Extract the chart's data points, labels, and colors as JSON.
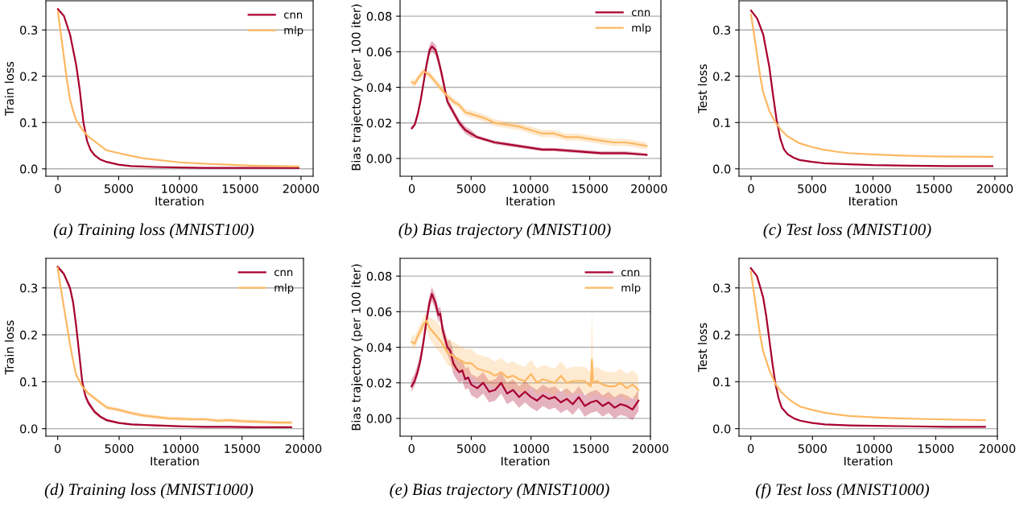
{
  "chart_data": [
    {
      "type": "line",
      "title": "(a) Training loss (MNIST100)",
      "xlabel": "Iteration",
      "ylabel": "Train loss",
      "xlim": [
        -990,
        21000
      ],
      "xticks": [
        0,
        5000,
        10000,
        15000,
        20000
      ],
      "ylim": [
        -0.016,
        0.363
      ],
      "yticks": [
        {
          "value": 0,
          "label": "0.0"
        },
        0.1,
        0.2,
        0.3
      ],
      "grid": "y",
      "legend": "top right",
      "line_style": "solid",
      "series": [
        {
          "name": "cnn",
          "color": "#a8002f",
          "x": [
            0,
            500,
            1000,
            1500,
            1800,
            2100,
            2400,
            2700,
            3000,
            3500,
            4000,
            5000,
            6000,
            7000,
            8000,
            10000,
            12000,
            15000,
            19800
          ],
          "values": [
            0.345,
            0.33,
            0.29,
            0.225,
            0.17,
            0.1,
            0.06,
            0.04,
            0.03,
            0.02,
            0.015,
            0.009,
            0.006,
            0.005,
            0.004,
            0.003,
            0.002,
            0.002,
            0.002
          ]
        },
        {
          "name": "mlp",
          "color": "#fdb863",
          "x": [
            0,
            250,
            500,
            750,
            1000,
            1250,
            1500,
            2000,
            2500,
            3000,
            3500,
            4000,
            5000,
            6000,
            7000,
            8000,
            9000,
            10000,
            12000,
            14000,
            16000,
            18000,
            19800
          ],
          "values": [
            0.34,
            0.29,
            0.24,
            0.19,
            0.15,
            0.125,
            0.105,
            0.085,
            0.07,
            0.06,
            0.05,
            0.04,
            0.034,
            0.028,
            0.023,
            0.02,
            0.017,
            0.014,
            0.011,
            0.009,
            0.007,
            0.006,
            0.005
          ]
        }
      ]
    },
    {
      "type": "line",
      "title": "(b) Bias trajectory (MNIST100)",
      "xlabel": "Iteration",
      "ylabel": "Bias trajectory (per 100 iter)",
      "xlim": [
        -990,
        21000
      ],
      "xticks": [
        0,
        5000,
        10000,
        15000,
        20000
      ],
      "ylim": [
        -0.01,
        0.09
      ],
      "yticks": [
        {
          "value": 0,
          "label": "0.00"
        },
        {
          "value": 0.02,
          "label": "0.02"
        },
        {
          "value": 0.04,
          "label": "0.04"
        },
        {
          "value": 0.06,
          "label": "0.06"
        },
        {
          "value": 0.08,
          "label": "0.08"
        }
      ],
      "grid": "y",
      "legend": "top right",
      "line_style": "solid",
      "series": [
        {
          "name": "cnn",
          "color": "#a8002f",
          "x": [
            0,
            250,
            500,
            750,
            1000,
            1250,
            1500,
            1700,
            2000,
            2250,
            2500,
            2750,
            3000,
            3500,
            4000,
            4500,
            5000,
            5500,
            6000,
            7000,
            8000,
            9000,
            10000,
            11000,
            12000,
            14000,
            16000,
            18000,
            19800
          ],
          "values": [
            0.017,
            0.019,
            0.025,
            0.033,
            0.043,
            0.053,
            0.061,
            0.063,
            0.061,
            0.055,
            0.048,
            0.04,
            0.032,
            0.026,
            0.02,
            0.016,
            0.014,
            0.012,
            0.011,
            0.009,
            0.008,
            0.007,
            0.006,
            0.005,
            0.005,
            0.004,
            0.003,
            0.003,
            0.002
          ],
          "lower": [
            0.016,
            0.018,
            0.023,
            0.031,
            0.041,
            0.05,
            0.058,
            0.06,
            0.058,
            0.052,
            0.045,
            0.037,
            0.03,
            0.024,
            0.018,
            0.014,
            0.012,
            0.011,
            0.01,
            0.008,
            0.007,
            0.006,
            0.005,
            0.004,
            0.004,
            0.003,
            0.002,
            0.002,
            0.002
          ],
          "upper": [
            0.018,
            0.02,
            0.027,
            0.035,
            0.045,
            0.056,
            0.064,
            0.066,
            0.064,
            0.058,
            0.051,
            0.043,
            0.034,
            0.028,
            0.022,
            0.018,
            0.016,
            0.013,
            0.012,
            0.01,
            0.009,
            0.008,
            0.007,
            0.006,
            0.006,
            0.005,
            0.004,
            0.004,
            0.003
          ]
        },
        {
          "name": "mlp",
          "color": "#fdb863",
          "x": [
            0,
            250,
            500,
            1000,
            1500,
            2000,
            2500,
            3000,
            3500,
            4000,
            4500,
            5000,
            6000,
            7000,
            8000,
            9000,
            10000,
            11000,
            12000,
            13000,
            14000,
            15000,
            16000,
            17000,
            18000,
            19000,
            19800
          ],
          "values": [
            0.043,
            0.042,
            0.045,
            0.049,
            0.047,
            0.043,
            0.039,
            0.035,
            0.032,
            0.03,
            0.026,
            0.025,
            0.023,
            0.02,
            0.019,
            0.018,
            0.016,
            0.014,
            0.014,
            0.012,
            0.012,
            0.011,
            0.01,
            0.009,
            0.009,
            0.008,
            0.007
          ],
          "lower": [
            0.041,
            0.04,
            0.043,
            0.047,
            0.045,
            0.041,
            0.037,
            0.033,
            0.03,
            0.028,
            0.024,
            0.023,
            0.021,
            0.018,
            0.017,
            0.016,
            0.014,
            0.012,
            0.012,
            0.01,
            0.01,
            0.009,
            0.008,
            0.007,
            0.007,
            0.006,
            0.005
          ],
          "upper": [
            0.045,
            0.044,
            0.047,
            0.051,
            0.049,
            0.045,
            0.041,
            0.037,
            0.034,
            0.032,
            0.028,
            0.027,
            0.025,
            0.022,
            0.021,
            0.02,
            0.018,
            0.016,
            0.016,
            0.014,
            0.014,
            0.013,
            0.012,
            0.011,
            0.011,
            0.01,
            0.009
          ]
        }
      ]
    },
    {
      "type": "line",
      "title": "(c) Test loss (MNIST100)",
      "xlabel": "Iteration",
      "ylabel": "Test loss",
      "xlim": [
        -990,
        21000
      ],
      "xticks": [
        0,
        5000,
        10000,
        15000,
        20000
      ],
      "ylim": [
        -0.016,
        0.363
      ],
      "yticks": [
        {
          "value": 0,
          "label": "0.0"
        },
        0.1,
        0.2,
        0.3
      ],
      "grid": "y",
      "line_style": "solid",
      "series": [
        {
          "color": "#a8002f",
          "x": [
            0,
            500,
            1000,
            1500,
            1800,
            2100,
            2400,
            2700,
            3000,
            3500,
            4000,
            5000,
            6000,
            8000,
            10000,
            13000,
            16000,
            19800
          ],
          "values": [
            0.342,
            0.325,
            0.29,
            0.22,
            0.16,
            0.105,
            0.065,
            0.042,
            0.032,
            0.024,
            0.019,
            0.015,
            0.012,
            0.01,
            0.008,
            0.007,
            0.006,
            0.006
          ]
        },
        {
          "color": "#fdb863",
          "x": [
            0,
            250,
            500,
            750,
            1000,
            1500,
            2000,
            2500,
            3000,
            4000,
            5000,
            6000,
            7000,
            8000,
            10000,
            12000,
            15000,
            19800
          ],
          "values": [
            0.333,
            0.29,
            0.245,
            0.2,
            0.165,
            0.125,
            0.1,
            0.083,
            0.07,
            0.055,
            0.047,
            0.041,
            0.037,
            0.034,
            0.031,
            0.029,
            0.027,
            0.026
          ]
        }
      ]
    },
    {
      "type": "line",
      "title": "(d) Training loss (MNIST1000)",
      "xlabel": "Iteration",
      "ylabel": "Train loss",
      "xlim": [
        -960,
        20000
      ],
      "xticks": [
        0,
        5000,
        10000,
        15000,
        20000
      ],
      "ylim": [
        -0.016,
        0.363
      ],
      "yticks": [
        {
          "value": 0,
          "label": "0.0"
        },
        0.1,
        0.2,
        0.3
      ],
      "grid": "y",
      "legend": "top right",
      "line_style": "solid",
      "series": [
        {
          "name": "cnn",
          "color": "#a8002f",
          "x": [
            0,
            500,
            1000,
            1250,
            1500,
            1750,
            2000,
            2250,
            2500,
            3000,
            3500,
            4000,
            5000,
            6000,
            7000,
            8000,
            9000,
            10000,
            12000,
            14000,
            16000,
            18000,
            19000
          ],
          "values": [
            0.345,
            0.33,
            0.3,
            0.27,
            0.22,
            0.16,
            0.1,
            0.07,
            0.055,
            0.036,
            0.025,
            0.018,
            0.012,
            0.009,
            0.008,
            0.007,
            0.006,
            0.005,
            0.004,
            0.004,
            0.003,
            0.003,
            0.003
          ],
          "lower": [
            0.342,
            0.326,
            0.293,
            0.262,
            0.212,
            0.152,
            0.093,
            0.064,
            0.049,
            0.032,
            0.022,
            0.015,
            0.01,
            0.007,
            0.006,
            0.005,
            0.004,
            0.003,
            0.002,
            0.002,
            0.001,
            0.001,
            0.001
          ],
          "upper": [
            0.348,
            0.334,
            0.307,
            0.278,
            0.228,
            0.168,
            0.107,
            0.076,
            0.061,
            0.04,
            0.028,
            0.021,
            0.014,
            0.011,
            0.01,
            0.009,
            0.008,
            0.007,
            0.006,
            0.006,
            0.005,
            0.005,
            0.005
          ]
        },
        {
          "name": "mlp",
          "color": "#fdb863",
          "x": [
            0,
            250,
            500,
            750,
            1000,
            1250,
            1500,
            2000,
            2500,
            3000,
            3500,
            4000,
            5000,
            6000,
            7000,
            8000,
            9000,
            10000,
            11000,
            12000,
            13000,
            14000,
            15000,
            16000,
            17000,
            18000,
            19000
          ],
          "values": [
            0.343,
            0.3,
            0.26,
            0.22,
            0.18,
            0.145,
            0.115,
            0.09,
            0.075,
            0.065,
            0.055,
            0.045,
            0.04,
            0.033,
            0.028,
            0.025,
            0.022,
            0.021,
            0.02,
            0.02,
            0.017,
            0.018,
            0.016,
            0.015,
            0.014,
            0.013,
            0.013
          ],
          "lower": [
            0.339,
            0.296,
            0.256,
            0.216,
            0.176,
            0.141,
            0.111,
            0.086,
            0.071,
            0.061,
            0.051,
            0.041,
            0.036,
            0.029,
            0.024,
            0.021,
            0.018,
            0.017,
            0.016,
            0.016,
            0.013,
            0.014,
            0.012,
            0.011,
            0.01,
            0.009,
            0.009
          ],
          "upper": [
            0.347,
            0.304,
            0.264,
            0.224,
            0.184,
            0.149,
            0.119,
            0.094,
            0.079,
            0.069,
            0.059,
            0.049,
            0.044,
            0.037,
            0.032,
            0.029,
            0.026,
            0.025,
            0.024,
            0.024,
            0.021,
            0.022,
            0.02,
            0.019,
            0.018,
            0.017,
            0.017
          ]
        }
      ]
    },
    {
      "type": "line",
      "title": "(e) Bias trajectory (MNIST1000)",
      "xlabel": "Iteration",
      "ylabel": "Bias trajectory (per 100 iter)",
      "xlim": [
        -960,
        20000
      ],
      "xticks": [
        0,
        5000,
        10000,
        15000,
        20000
      ],
      "ylim": [
        -0.01,
        0.09
      ],
      "yticks": [
        {
          "value": 0,
          "label": "0.00"
        },
        {
          "value": 0.02,
          "label": "0.02"
        },
        {
          "value": 0.04,
          "label": "0.04"
        },
        {
          "value": 0.06,
          "label": "0.06"
        },
        {
          "value": 0.08,
          "label": "0.08"
        }
      ],
      "grid": "y",
      "legend": "top right",
      "line_style": "solid",
      "series": [
        {
          "name": "cnn",
          "color": "#a8002f",
          "x": [
            0,
            250,
            500,
            750,
            1000,
            1250,
            1500,
            1700,
            2000,
            2250,
            2400,
            2600,
            2800,
            3000,
            3250,
            3500,
            3750,
            4000,
            4250,
            4500,
            4750,
            5000,
            5500,
            6000,
            6500,
            7000,
            7500,
            8000,
            8500,
            9000,
            9500,
            10000,
            10500,
            11000,
            11500,
            12000,
            12500,
            13000,
            13500,
            14000,
            14500,
            15000,
            15500,
            16000,
            16500,
            17000,
            17500,
            18000,
            18500,
            19000
          ],
          "values": [
            0.018,
            0.021,
            0.026,
            0.033,
            0.043,
            0.055,
            0.065,
            0.07,
            0.065,
            0.058,
            0.059,
            0.05,
            0.045,
            0.04,
            0.038,
            0.031,
            0.028,
            0.026,
            0.027,
            0.022,
            0.023,
            0.019,
            0.017,
            0.02,
            0.015,
            0.016,
            0.02,
            0.014,
            0.016,
            0.012,
            0.015,
            0.012,
            0.01,
            0.013,
            0.011,
            0.012,
            0.009,
            0.011,
            0.008,
            0.012,
            0.007,
            0.009,
            0.01,
            0.007,
            0.009,
            0.006,
            0.008,
            0.007,
            0.005,
            0.01
          ],
          "lower": [
            0.015,
            0.018,
            0.023,
            0.03,
            0.04,
            0.051,
            0.061,
            0.066,
            0.061,
            0.054,
            0.055,
            0.046,
            0.041,
            0.036,
            0.032,
            0.025,
            0.022,
            0.02,
            0.021,
            0.016,
            0.017,
            0.013,
            0.011,
            0.014,
            0.009,
            0.01,
            0.014,
            0.008,
            0.01,
            0.006,
            0.009,
            0.006,
            0.004,
            0.007,
            0.005,
            0.006,
            0.003,
            0.005,
            0.002,
            0.006,
            0.001,
            0.003,
            0.004,
            0.001,
            0.003,
            0.0,
            0.002,
            0.001,
            -0.001,
            0.004
          ],
          "upper": [
            0.022,
            0.025,
            0.03,
            0.037,
            0.047,
            0.059,
            0.069,
            0.074,
            0.069,
            0.062,
            0.063,
            0.054,
            0.049,
            0.044,
            0.044,
            0.037,
            0.034,
            0.032,
            0.033,
            0.028,
            0.029,
            0.025,
            0.023,
            0.026,
            0.021,
            0.022,
            0.026,
            0.02,
            0.022,
            0.018,
            0.021,
            0.018,
            0.016,
            0.019,
            0.017,
            0.018,
            0.015,
            0.017,
            0.014,
            0.018,
            0.013,
            0.015,
            0.016,
            0.013,
            0.015,
            0.012,
            0.014,
            0.013,
            0.011,
            0.016
          ]
        },
        {
          "name": "mlp",
          "color": "#fdb863",
          "x": [
            0,
            250,
            500,
            1000,
            1250,
            1500,
            2000,
            2500,
            3000,
            3500,
            4000,
            4500,
            5000,
            5500,
            6000,
            6500,
            7000,
            7500,
            8000,
            8500,
            9000,
            9500,
            10000,
            10500,
            11000,
            11500,
            12000,
            12500,
            13000,
            13500,
            14000,
            14500,
            15000,
            15100,
            15200,
            15500,
            16000,
            16500,
            17000,
            17500,
            18000,
            18500,
            19000
          ],
          "values": [
            0.043,
            0.042,
            0.046,
            0.053,
            0.055,
            0.051,
            0.047,
            0.043,
            0.037,
            0.035,
            0.033,
            0.031,
            0.031,
            0.028,
            0.027,
            0.026,
            0.024,
            0.026,
            0.023,
            0.024,
            0.022,
            0.021,
            0.025,
            0.02,
            0.022,
            0.021,
            0.02,
            0.024,
            0.02,
            0.021,
            0.021,
            0.021,
            0.018,
            0.033,
            0.02,
            0.021,
            0.019,
            0.018,
            0.018,
            0.02,
            0.017,
            0.019,
            0.016
          ],
          "lower": [
            0.04,
            0.039,
            0.043,
            0.049,
            0.05,
            0.045,
            0.04,
            0.036,
            0.03,
            0.028,
            0.026,
            0.024,
            0.024,
            0.021,
            0.02,
            0.019,
            0.017,
            0.019,
            0.016,
            0.017,
            0.015,
            0.014,
            0.018,
            0.013,
            0.015,
            0.014,
            0.013,
            0.017,
            0.013,
            0.014,
            0.014,
            0.014,
            0.011,
            0.015,
            0.013,
            0.014,
            0.012,
            0.011,
            0.011,
            0.013,
            0.01,
            0.012,
            0.009
          ],
          "upper": [
            0.047,
            0.046,
            0.05,
            0.057,
            0.06,
            0.057,
            0.055,
            0.051,
            0.045,
            0.043,
            0.041,
            0.039,
            0.039,
            0.036,
            0.035,
            0.034,
            0.032,
            0.034,
            0.031,
            0.032,
            0.03,
            0.029,
            0.033,
            0.028,
            0.03,
            0.029,
            0.028,
            0.032,
            0.028,
            0.029,
            0.029,
            0.029,
            0.026,
            0.063,
            0.028,
            0.029,
            0.027,
            0.026,
            0.026,
            0.028,
            0.025,
            0.027,
            0.024
          ]
        }
      ]
    },
    {
      "type": "line",
      "title": "(f) Test loss (MNIST1000)",
      "xlabel": "Iteration",
      "ylabel": "Test loss",
      "xlim": [
        -960,
        20000
      ],
      "xticks": [
        0,
        5000,
        10000,
        15000,
        20000
      ],
      "ylim": [
        -0.016,
        0.363
      ],
      "yticks": [
        {
          "value": 0,
          "label": "0.0"
        },
        0.1,
        0.2,
        0.3
      ],
      "grid": "y",
      "line_style": "solid",
      "series": [
        {
          "color": "#a8002f",
          "x": [
            0,
            500,
            1000,
            1250,
            1500,
            1750,
            2000,
            2250,
            2500,
            3000,
            3500,
            4000,
            5000,
            6000,
            8000,
            10000,
            13000,
            16000,
            19000
          ],
          "values": [
            0.342,
            0.325,
            0.28,
            0.24,
            0.19,
            0.14,
            0.095,
            0.065,
            0.045,
            0.03,
            0.022,
            0.017,
            0.012,
            0.009,
            0.007,
            0.006,
            0.005,
            0.004,
            0.004
          ]
        },
        {
          "color": "#fdb863",
          "x": [
            0,
            250,
            500,
            750,
            1000,
            1500,
            2000,
            2500,
            3000,
            3500,
            4000,
            5000,
            6000,
            7000,
            8000,
            10000,
            12000,
            15000,
            19000
          ],
          "values": [
            0.335,
            0.29,
            0.245,
            0.2,
            0.165,
            0.125,
            0.095,
            0.077,
            0.065,
            0.055,
            0.047,
            0.04,
            0.034,
            0.03,
            0.027,
            0.024,
            0.022,
            0.02,
            0.018
          ]
        }
      ]
    }
  ]
}
